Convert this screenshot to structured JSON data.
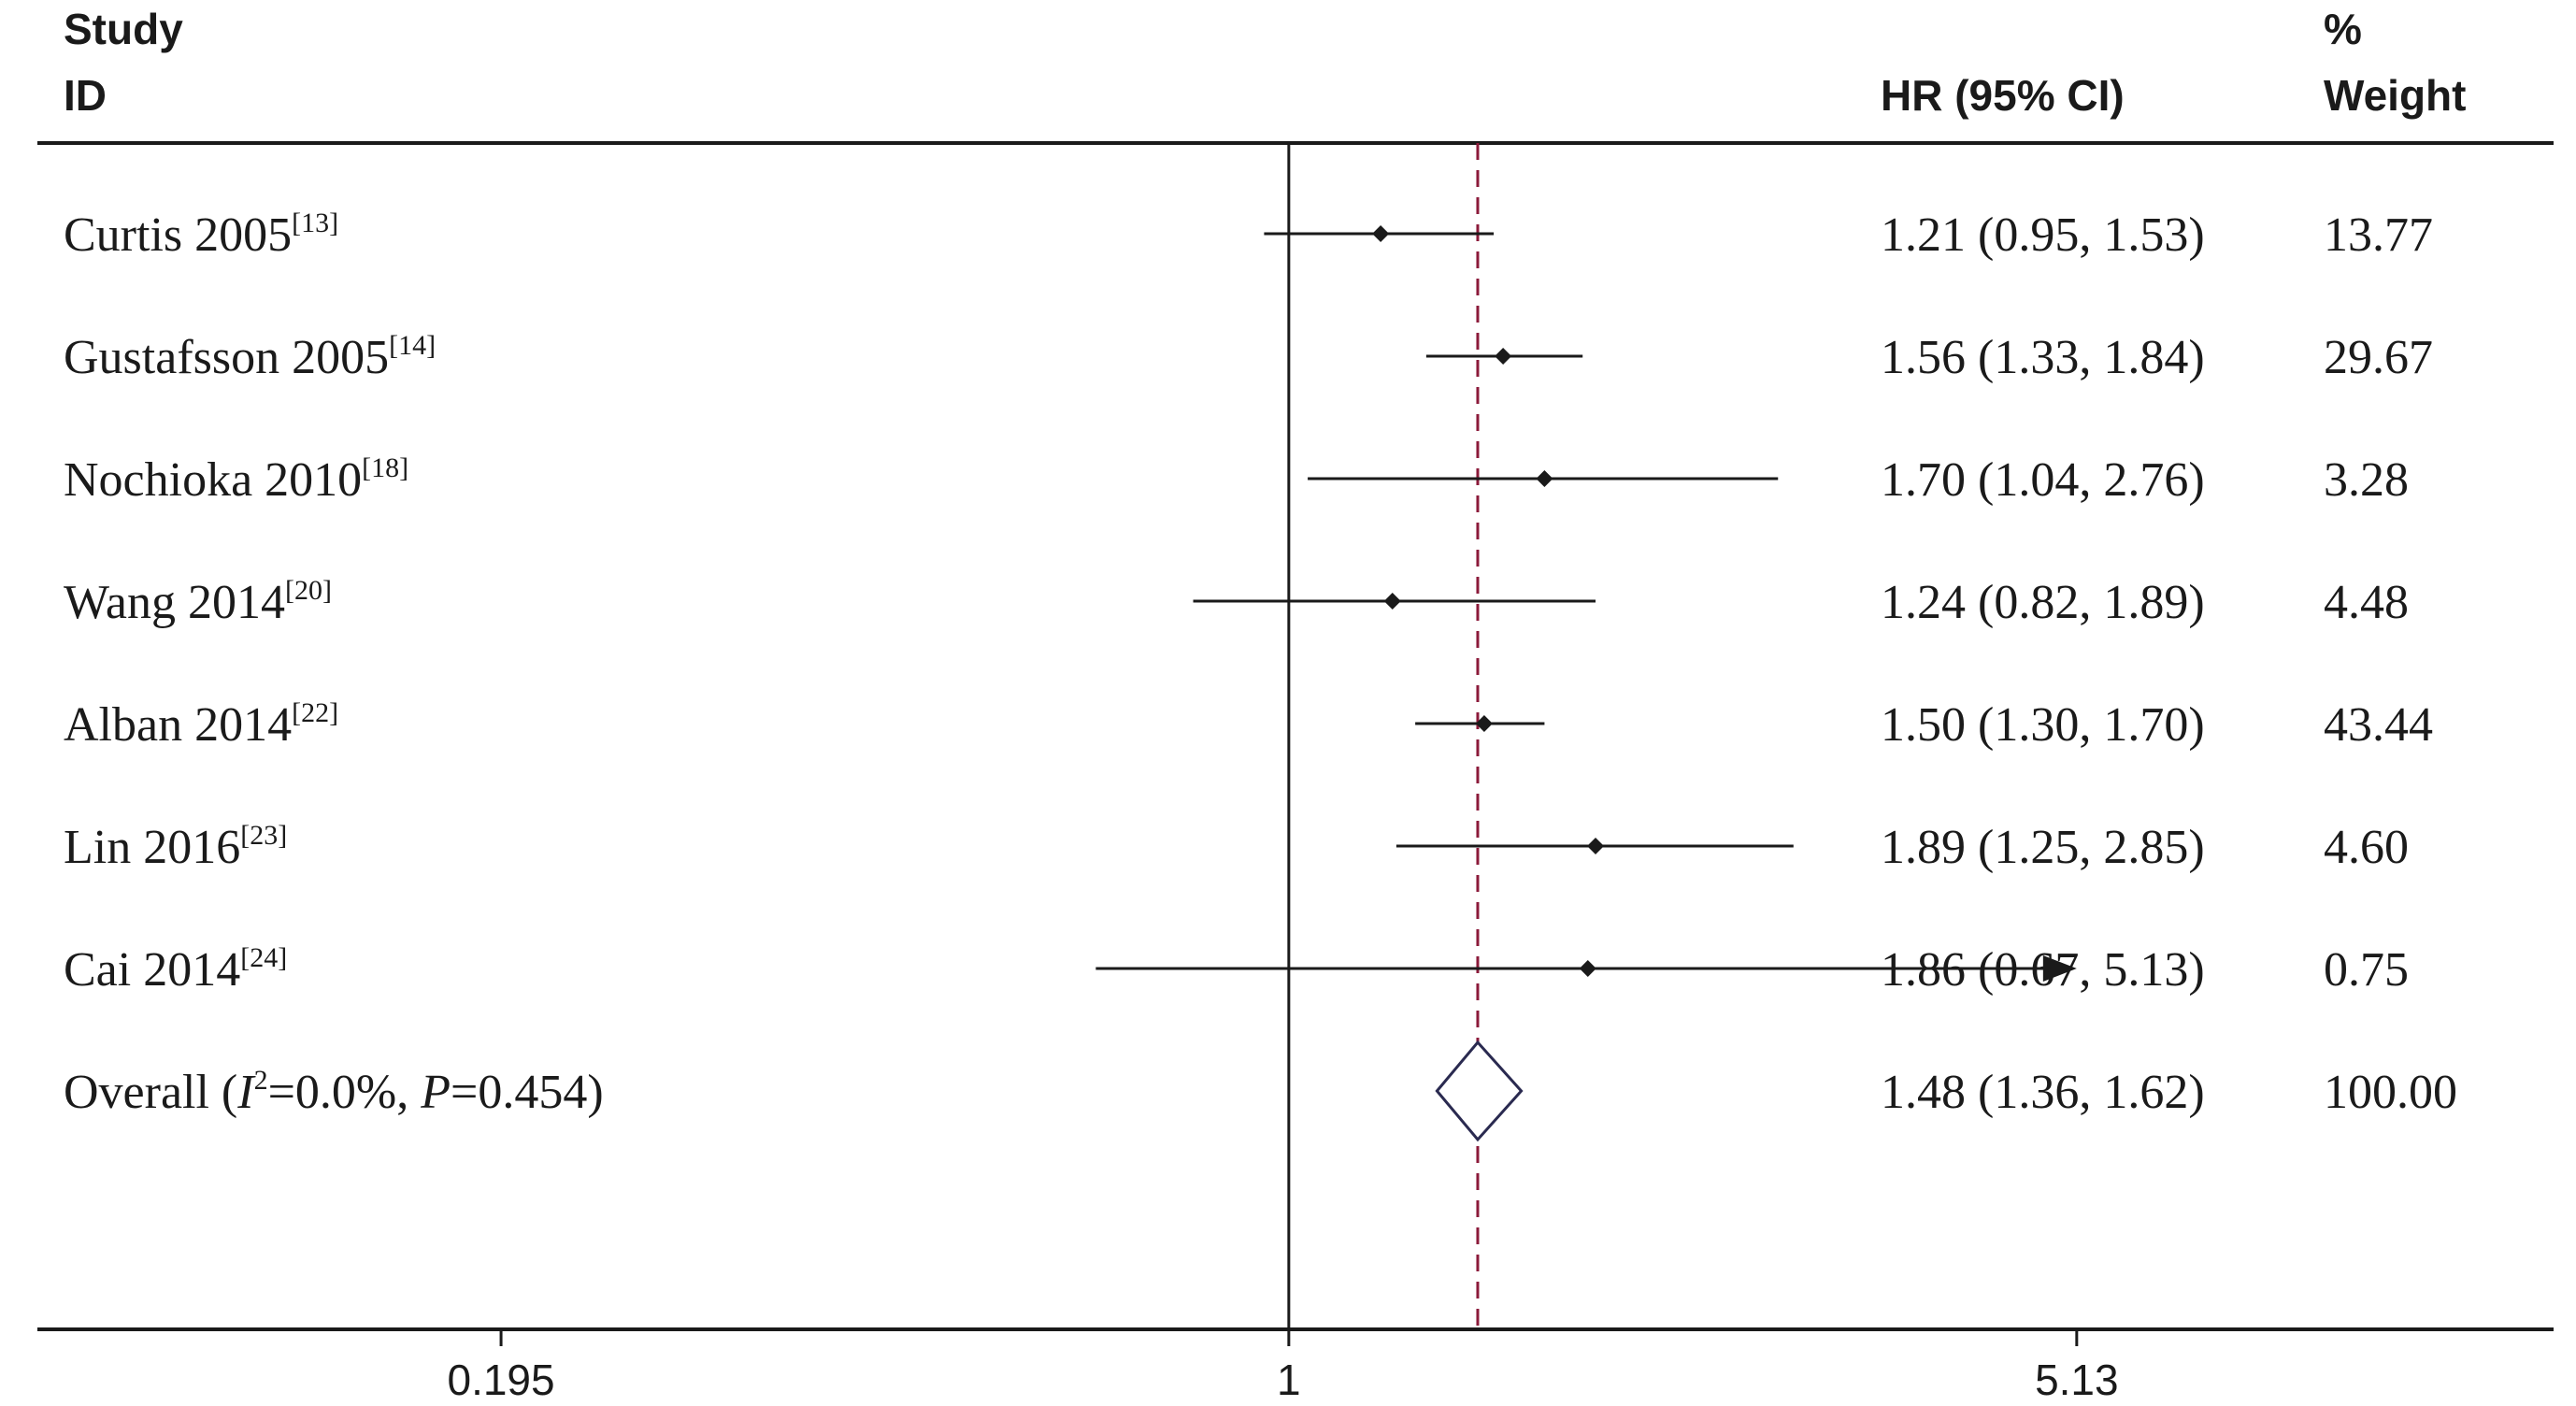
{
  "chart_data": {
    "type": "forest",
    "headers": {
      "study_line1": "Study",
      "study_line2": "ID",
      "hr": "HR (95% CI)",
      "weight_line1": "%",
      "weight_line2": "Weight"
    },
    "x_scale": "log",
    "x_ticks": [
      {
        "value": 0.195,
        "label": "0.195"
      },
      {
        "value": 1,
        "label": "1"
      },
      {
        "value": 5.13,
        "label": "5.13"
      }
    ],
    "xlim": [
      0.0745,
      13.8
    ],
    "null_line": 1,
    "studies": [
      {
        "name": "Curtis 2005",
        "ref": "[13]",
        "hr": 1.21,
        "lo": 0.95,
        "hi": 1.53,
        "hr_text": "1.21 (0.95, 1.53)",
        "weight": "13.77",
        "arrow": false
      },
      {
        "name": "Gustafsson  2005",
        "ref": "[14]",
        "hr": 1.56,
        "lo": 1.33,
        "hi": 1.84,
        "hr_text": "1.56 (1.33, 1.84)",
        "weight": "29.67",
        "arrow": false
      },
      {
        "name": "Nochioka 2010",
        "ref": "[18]",
        "hr": 1.7,
        "lo": 1.04,
        "hi": 2.76,
        "hr_text": "1.70 (1.04, 2.76)",
        "weight": "3.28",
        "arrow": false
      },
      {
        "name": "Wang 2014",
        "ref": "[20]",
        "hr": 1.24,
        "lo": 0.82,
        "hi": 1.89,
        "hr_text": "1.24 (0.82, 1.89)",
        "weight": "4.48",
        "arrow": false
      },
      {
        "name": "Alban 2014",
        "ref": "[22]",
        "hr": 1.5,
        "lo": 1.3,
        "hi": 1.7,
        "hr_text": "1.50 (1.30, 1.70)",
        "weight": "43.44",
        "arrow": false
      },
      {
        "name": "Lin 2016",
        "ref": "[23]",
        "hr": 1.89,
        "lo": 1.25,
        "hi": 2.85,
        "hr_text": "1.89 (1.25, 2.85)",
        "weight": "4.60",
        "arrow": false
      },
      {
        "name": "Cai 2014",
        "ref": "[24]",
        "hr": 1.86,
        "lo": 0.67,
        "hi": 5.13,
        "hr_text": "1.86 (0.67, 5.13)",
        "weight": "0.75",
        "arrow": true
      }
    ],
    "overall": {
      "label_prefix": "Overall  (",
      "i2_symbol": "I",
      "i2_exp": "2",
      "i2_value": "=0.0%, ",
      "p_symbol": "P",
      "p_value": "=0.454)",
      "hr": 1.48,
      "lo": 1.36,
      "hi": 1.62,
      "hr_text": "1.48 (1.36, 1.62)",
      "weight": "100.00"
    },
    "colors": {
      "text": "#1a1a1a",
      "ci_line": "#1a1a1a",
      "point": "#1a1a1a",
      "overall_line": "#8b1a3a",
      "diamond": "#2a2a50"
    }
  }
}
